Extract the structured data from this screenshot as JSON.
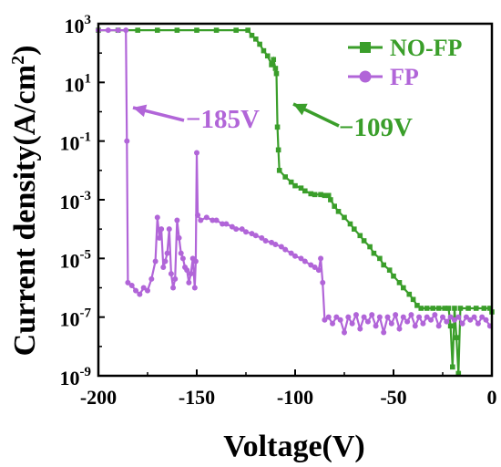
{
  "chart_data": {
    "type": "line",
    "title": "",
    "xlabel": "Voltage(V)",
    "ylabel": "Current density(A/cm²)",
    "ylabel_main": "Current density(A/cm",
    "ylabel_sup": "2",
    "ylabel_close": ")",
    "xlim": [
      -200,
      0
    ],
    "ylim": [
      1e-09,
      1000
    ],
    "y_scale": "log",
    "grid": false,
    "legend_position": "top-right",
    "x_ticks": [
      -200,
      -150,
      -100,
      -50,
      0
    ],
    "x_tick_labels": [
      "-200",
      "-150",
      "-100",
      "-50",
      "0"
    ],
    "y_ticks": [
      {
        "value": 1000.0,
        "base": "10",
        "exp": "3"
      },
      {
        "value": 10,
        "base": "10",
        "exp": "1"
      },
      {
        "value": 0.1,
        "base": "10",
        "exp": "-1"
      },
      {
        "value": 0.001,
        "base": "10",
        "exp": "-3"
      },
      {
        "value": 1e-05,
        "base": "10",
        "exp": "-5"
      },
      {
        "value": 1e-07,
        "base": "10",
        "exp": "-7"
      },
      {
        "value": 1e-09,
        "base": "10",
        "exp": "-9"
      }
    ],
    "series": [
      {
        "name": "NO-FP",
        "color": "#3a9e2a",
        "marker": "square",
        "points": [
          [
            -200,
            600
          ],
          [
            -190,
            600
          ],
          [
            -180,
            600
          ],
          [
            -170,
            600
          ],
          [
            -160,
            600
          ],
          [
            -150,
            600
          ],
          [
            -140,
            600
          ],
          [
            -130,
            600
          ],
          [
            -124,
            600
          ],
          [
            -122,
            400
          ],
          [
            -120,
            300
          ],
          [
            -118,
            200
          ],
          [
            -116,
            120
          ],
          [
            -114,
            80
          ],
          [
            -112,
            40
          ],
          [
            -111,
            60
          ],
          [
            -110,
            30
          ],
          [
            -109.5,
            20
          ],
          [
            -109,
            0.3
          ],
          [
            -108.5,
            0.05
          ],
          [
            -108,
            0.01
          ],
          [
            -105,
            0.006
          ],
          [
            -102,
            0.004
          ],
          [
            -100,
            0.003
          ],
          [
            -97,
            0.0025
          ],
          [
            -95,
            0.002
          ],
          [
            -92,
            0.0016
          ],
          [
            -90,
            0.0015
          ],
          [
            -87,
            0.0015
          ],
          [
            -85,
            0.0014
          ],
          [
            -83,
            0.0014
          ],
          [
            -82,
            0.001
          ],
          [
            -80,
            0.0006
          ],
          [
            -78,
            0.0004
          ],
          [
            -75,
            0.00025
          ],
          [
            -72,
            0.00015
          ],
          [
            -70,
            0.0001
          ],
          [
            -67,
            6e-05
          ],
          [
            -65,
            4e-05
          ],
          [
            -62,
            2.5e-05
          ],
          [
            -60,
            1.5e-05
          ],
          [
            -57,
            1e-05
          ],
          [
            -55,
            6e-06
          ],
          [
            -52,
            4e-06
          ],
          [
            -50,
            2.5e-06
          ],
          [
            -47,
            1.5e-06
          ],
          [
            -45,
            1e-06
          ],
          [
            -42,
            6e-07
          ],
          [
            -40,
            4e-07
          ],
          [
            -38,
            2.5e-07
          ],
          [
            -36,
            2e-07
          ],
          [
            -33,
            2e-07
          ],
          [
            -30,
            2e-07
          ],
          [
            -27,
            2e-07
          ],
          [
            -24,
            2e-07
          ],
          [
            -22,
            2e-07
          ],
          [
            -21,
            5e-08
          ],
          [
            -20,
            2e-09
          ],
          [
            -19,
            2e-07
          ],
          [
            -18,
            2e-08
          ],
          [
            -17,
            1.2e-09
          ],
          [
            -16,
            2e-07
          ],
          [
            -12,
            2e-07
          ],
          [
            -8,
            2e-07
          ],
          [
            -4,
            2e-07
          ],
          [
            -1,
            2e-07
          ],
          [
            0,
            1.5e-07
          ]
        ]
      },
      {
        "name": "FP",
        "color": "#b165d8",
        "marker": "circle",
        "points": [
          [
            -200,
            600
          ],
          [
            -195,
            600
          ],
          [
            -190,
            600
          ],
          [
            -186,
            600
          ],
          [
            -185.5,
            0.1
          ],
          [
            -185,
            1.5e-06
          ],
          [
            -183,
            1.2e-06
          ],
          [
            -181,
            8e-07
          ],
          [
            -179,
            6e-07
          ],
          [
            -177,
            1e-06
          ],
          [
            -175,
            8e-07
          ],
          [
            -173,
            2e-06
          ],
          [
            -171,
            8e-06
          ],
          [
            -170,
            0.00025
          ],
          [
            -169,
            5e-05
          ],
          [
            -168,
            0.0001
          ],
          [
            -167,
            5e-06
          ],
          [
            -166,
            8e-06
          ],
          [
            -165,
            1.5e-05
          ],
          [
            -164,
            0.0001
          ],
          [
            -163,
            3e-06
          ],
          [
            -162,
            1e-06
          ],
          [
            -161,
            2e-06
          ],
          [
            -160,
            0.0002
          ],
          [
            -159,
            5e-05
          ],
          [
            -158,
            1.5e-05
          ],
          [
            -157,
            1e-05
          ],
          [
            -156,
            5e-06
          ],
          [
            -155,
            4e-06
          ],
          [
            -154,
            1.5e-06
          ],
          [
            -153,
            3e-06
          ],
          [
            -152,
            1e-05
          ],
          [
            -151,
            1e-06
          ],
          [
            -150.5,
            8e-06
          ],
          [
            -150,
            0.04
          ],
          [
            -149.5,
            0.0003
          ],
          [
            -148,
            0.0002
          ],
          [
            -145,
            0.00025
          ],
          [
            -142,
            0.0002
          ],
          [
            -140,
            0.0002
          ],
          [
            -137,
            0.00015
          ],
          [
            -135,
            0.00015
          ],
          [
            -132,
            0.00012
          ],
          [
            -130,
            0.0001
          ],
          [
            -127,
            0.0001
          ],
          [
            -125,
            8e-05
          ],
          [
            -122,
            7e-05
          ],
          [
            -120,
            6e-05
          ],
          [
            -117,
            5e-05
          ],
          [
            -115,
            4e-05
          ],
          [
            -112,
            3.5e-05
          ],
          [
            -110,
            3e-05
          ],
          [
            -107,
            2.5e-05
          ],
          [
            -105,
            2e-05
          ],
          [
            -102,
            1.5e-05
          ],
          [
            -100,
            1.2e-05
          ],
          [
            -97,
            1e-05
          ],
          [
            -95,
            8e-06
          ],
          [
            -92,
            6e-06
          ],
          [
            -90,
            5e-06
          ],
          [
            -88,
            4e-06
          ],
          [
            -87,
            1e-05
          ],
          [
            -86,
            1.5e-06
          ],
          [
            -85,
            8e-08
          ],
          [
            -83,
            1e-07
          ],
          [
            -81,
            6e-08
          ],
          [
            -79,
            1e-07
          ],
          [
            -77,
            8e-08
          ],
          [
            -75,
            3e-08
          ],
          [
            -73,
            1e-07
          ],
          [
            -71,
            6e-08
          ],
          [
            -69,
            1.2e-07
          ],
          [
            -67,
            4e-08
          ],
          [
            -65,
            1e-07
          ],
          [
            -63,
            7e-08
          ],
          [
            -61,
            1.2e-07
          ],
          [
            -59,
            5e-08
          ],
          [
            -57,
            1e-07
          ],
          [
            -55,
            3e-08
          ],
          [
            -53,
            1e-07
          ],
          [
            -51,
            6e-08
          ],
          [
            -49,
            1.2e-07
          ],
          [
            -47,
            4e-08
          ],
          [
            -45,
            1e-07
          ],
          [
            -43,
            7e-08
          ],
          [
            -41,
            1.2e-07
          ],
          [
            -39,
            5e-08
          ],
          [
            -37,
            1e-07
          ],
          [
            -35,
            6e-08
          ],
          [
            -33,
            1e-07
          ],
          [
            -31,
            8e-08
          ],
          [
            -29,
            1.2e-07
          ],
          [
            -27,
            5e-08
          ],
          [
            -25,
            1e-07
          ],
          [
            -23,
            7e-08
          ],
          [
            -21,
            1e-07
          ],
          [
            -19,
            8e-08
          ],
          [
            -17,
            1e-07
          ],
          [
            -15,
            6e-08
          ],
          [
            -13,
            1e-07
          ],
          [
            -11,
            8e-08
          ],
          [
            -9,
            1e-07
          ],
          [
            -7,
            6e-08
          ],
          [
            -5,
            1e-07
          ],
          [
            -3,
            8e-08
          ],
          [
            -1,
            5e-08
          ]
        ]
      }
    ],
    "annotations": [
      {
        "text": "−185V",
        "color": "#b165d8"
      },
      {
        "text": "−109V",
        "color": "#3a9e2a"
      }
    ]
  }
}
